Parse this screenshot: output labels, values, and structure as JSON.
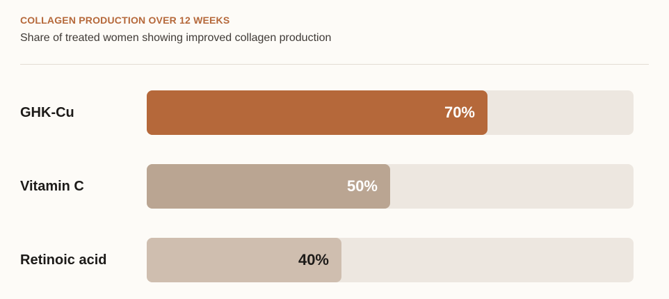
{
  "header": {
    "title": "COLLAGEN PRODUCTION OVER 12 WEEKS",
    "subtitle": "Share of treated women showing improved collagen production"
  },
  "colors": {
    "accent": "#b5683a",
    "track": "#ede7e0",
    "light_text": "#ffffff",
    "dark_text": "#1c1a18"
  },
  "chart_data": {
    "type": "bar",
    "orientation": "horizontal",
    "title": "COLLAGEN PRODUCTION OVER 12 WEEKS",
    "subtitle": "Share of treated women showing improved collagen production",
    "xlim": [
      0,
      100
    ],
    "grid": false,
    "categories": [
      "GHK-Cu",
      "Vitamin C",
      "Retinoic acid"
    ],
    "values": [
      70,
      50,
      40
    ],
    "value_labels": [
      "70%",
      "50%",
      "40%"
    ],
    "bar_colors": [
      "#b5683a",
      "#baa592",
      "#cfbeaf"
    ],
    "label_colors": [
      "#ffffff",
      "#ffffff",
      "#1c1a18"
    ]
  }
}
